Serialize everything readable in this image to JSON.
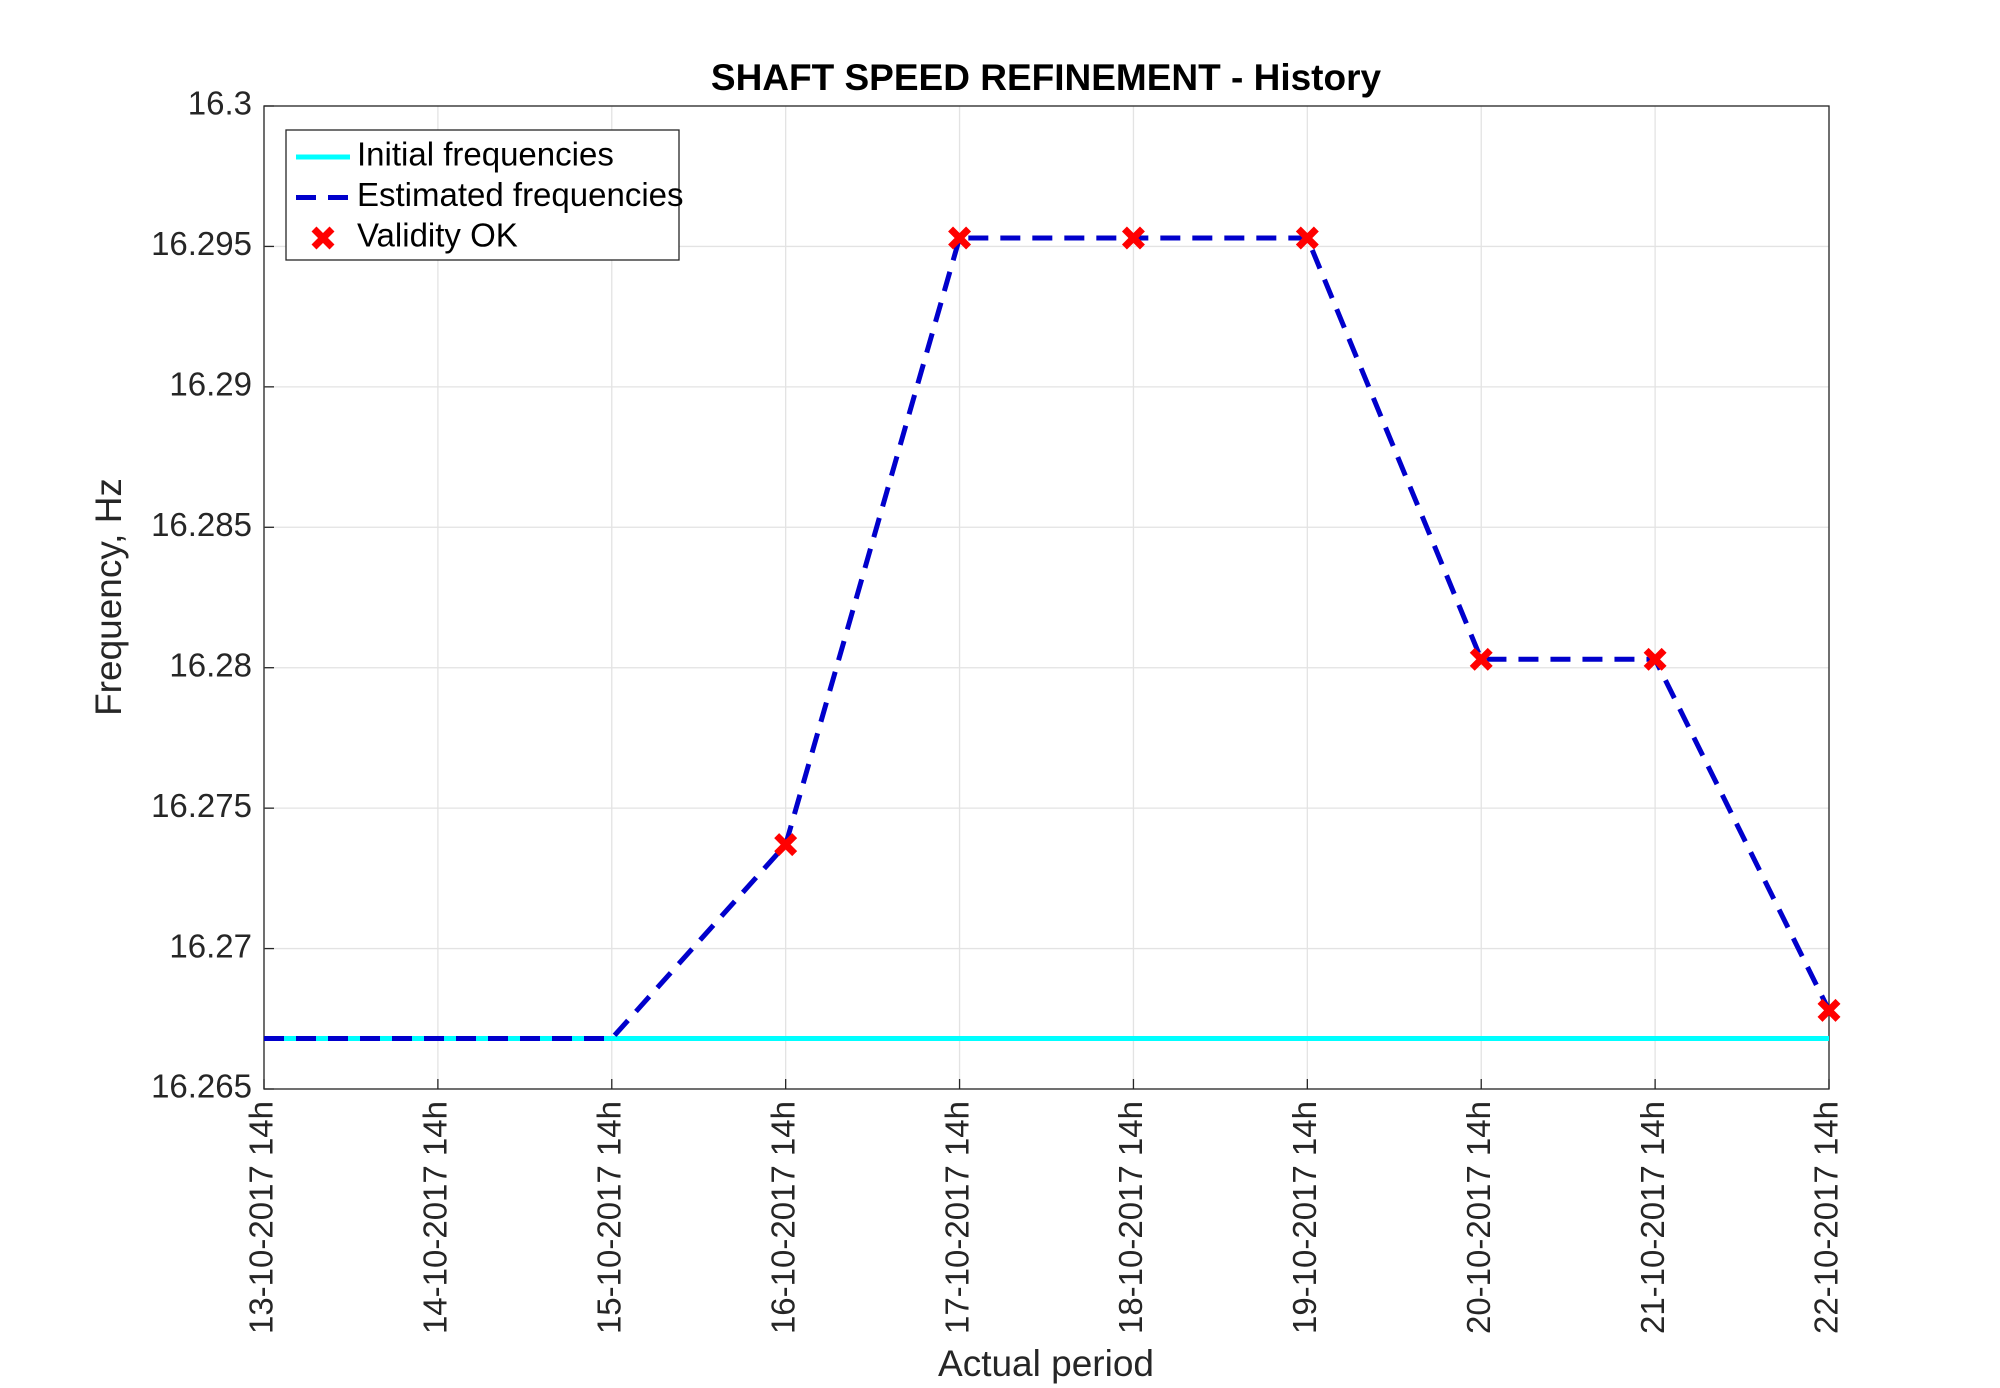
{
  "chart_data": {
    "type": "line",
    "title": "SHAFT SPEED REFINEMENT - History",
    "xlabel": "Actual period",
    "ylabel": "Frequency, Hz",
    "categories": [
      "13-10-2017 14h",
      "14-10-2017 14h",
      "15-10-2017 14h",
      "16-10-2017 14h",
      "17-10-2017 14h",
      "18-10-2017 14h",
      "19-10-2017 14h",
      "20-10-2017 14h",
      "21-10-2017 14h",
      "22-10-2017 14h"
    ],
    "series": [
      {
        "name": "Initial frequencies",
        "color": "#00ffff",
        "style": "solid",
        "values": [
          16.2668,
          16.2668,
          16.2668,
          16.2668,
          16.2668,
          16.2668,
          16.2668,
          16.2668,
          16.2668,
          16.2668
        ]
      },
      {
        "name": "Estimated frequencies",
        "color": "#0000cc",
        "style": "dashed",
        "values": [
          16.2668,
          16.2668,
          16.2668,
          16.2737,
          16.2953,
          16.2953,
          16.2953,
          16.2803,
          16.2803,
          16.2678
        ]
      },
      {
        "name": "Validity OK",
        "color": "#ff0000",
        "style": "marker",
        "values": [
          null,
          null,
          null,
          16.2737,
          16.2953,
          16.2953,
          16.2953,
          16.2803,
          16.2803,
          16.2678
        ]
      }
    ],
    "ylim": [
      16.265,
      16.3
    ],
    "yticks": [
      16.265,
      16.27,
      16.275,
      16.28,
      16.285,
      16.29,
      16.295,
      16.3
    ],
    "grid": true,
    "legend": "upper left"
  }
}
